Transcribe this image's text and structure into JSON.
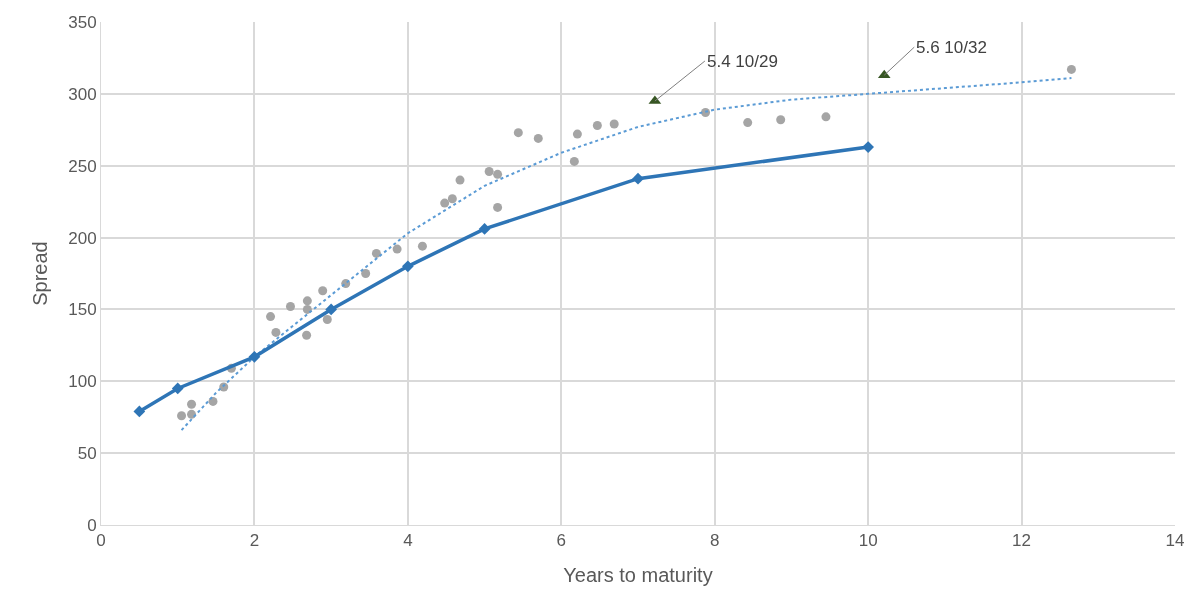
{
  "chart_data": {
    "type": "line",
    "xlabel": "Years to maturity",
    "ylabel": "Spread",
    "xlim": [
      0,
      14
    ],
    "xticks": [
      0,
      2,
      4,
      6,
      8,
      10,
      12,
      14
    ],
    "ylim": [
      0,
      350
    ],
    "yticks": [
      0,
      50,
      100,
      150,
      200,
      250,
      300,
      350
    ],
    "grid": true,
    "series": [
      {
        "type": "scatter",
        "color": "#a5a5a5",
        "marker": "circle",
        "x": [
          1.05,
          1.18,
          1.18,
          1.46,
          1.6,
          1.7,
          2.21,
          2.28,
          2.47,
          2.69,
          2.69,
          2.68,
          2.89,
          2.95,
          3.19,
          3.45,
          3.59,
          3.86,
          4.19,
          4.48,
          4.58,
          4.68,
          5.06,
          5.17,
          5.17,
          5.44,
          5.7,
          6.17,
          6.21,
          6.47,
          6.69,
          7.88,
          8.43,
          8.86,
          9.45,
          12.65
        ],
        "values": [
          76,
          84,
          77,
          86,
          96,
          109,
          145,
          134,
          152,
          156,
          150,
          132,
          163,
          143,
          168,
          175,
          189,
          192,
          194,
          224,
          227,
          240,
          246,
          244,
          221,
          273,
          269,
          253,
          272,
          278,
          279,
          287,
          280,
          282,
          284,
          317
        ]
      },
      {
        "type": "line",
        "color": "#5b9bd5",
        "marker": "none",
        "line_style": "dotted",
        "x": [
          1.05,
          1.5,
          2,
          3,
          4,
          5,
          6,
          7,
          8,
          9,
          10,
          11,
          12,
          12.65
        ],
        "values": [
          66,
          92,
          117,
          160,
          203,
          236,
          259,
          277,
          289,
          296,
          300,
          304,
          308,
          311
        ]
      },
      {
        "color": "#2e75b6",
        "marker": "diamond",
        "line_style": "solid",
        "x": [
          0.5,
          1,
          2,
          3,
          4,
          5,
          7,
          10
        ],
        "values": [
          79,
          95,
          117,
          150,
          180,
          206,
          241,
          263
        ]
      },
      {
        "type": "scatter",
        "color": "#375623",
        "marker": "triangle",
        "x": [
          7.22,
          10.21
        ],
        "values": [
          295,
          313
        ]
      }
    ],
    "annotations": [
      {
        "text": "5.4 10/29",
        "x": 7.22,
        "y": 295
      },
      {
        "text": "5.6 10/32",
        "x": 10.21,
        "y": 313
      }
    ]
  }
}
